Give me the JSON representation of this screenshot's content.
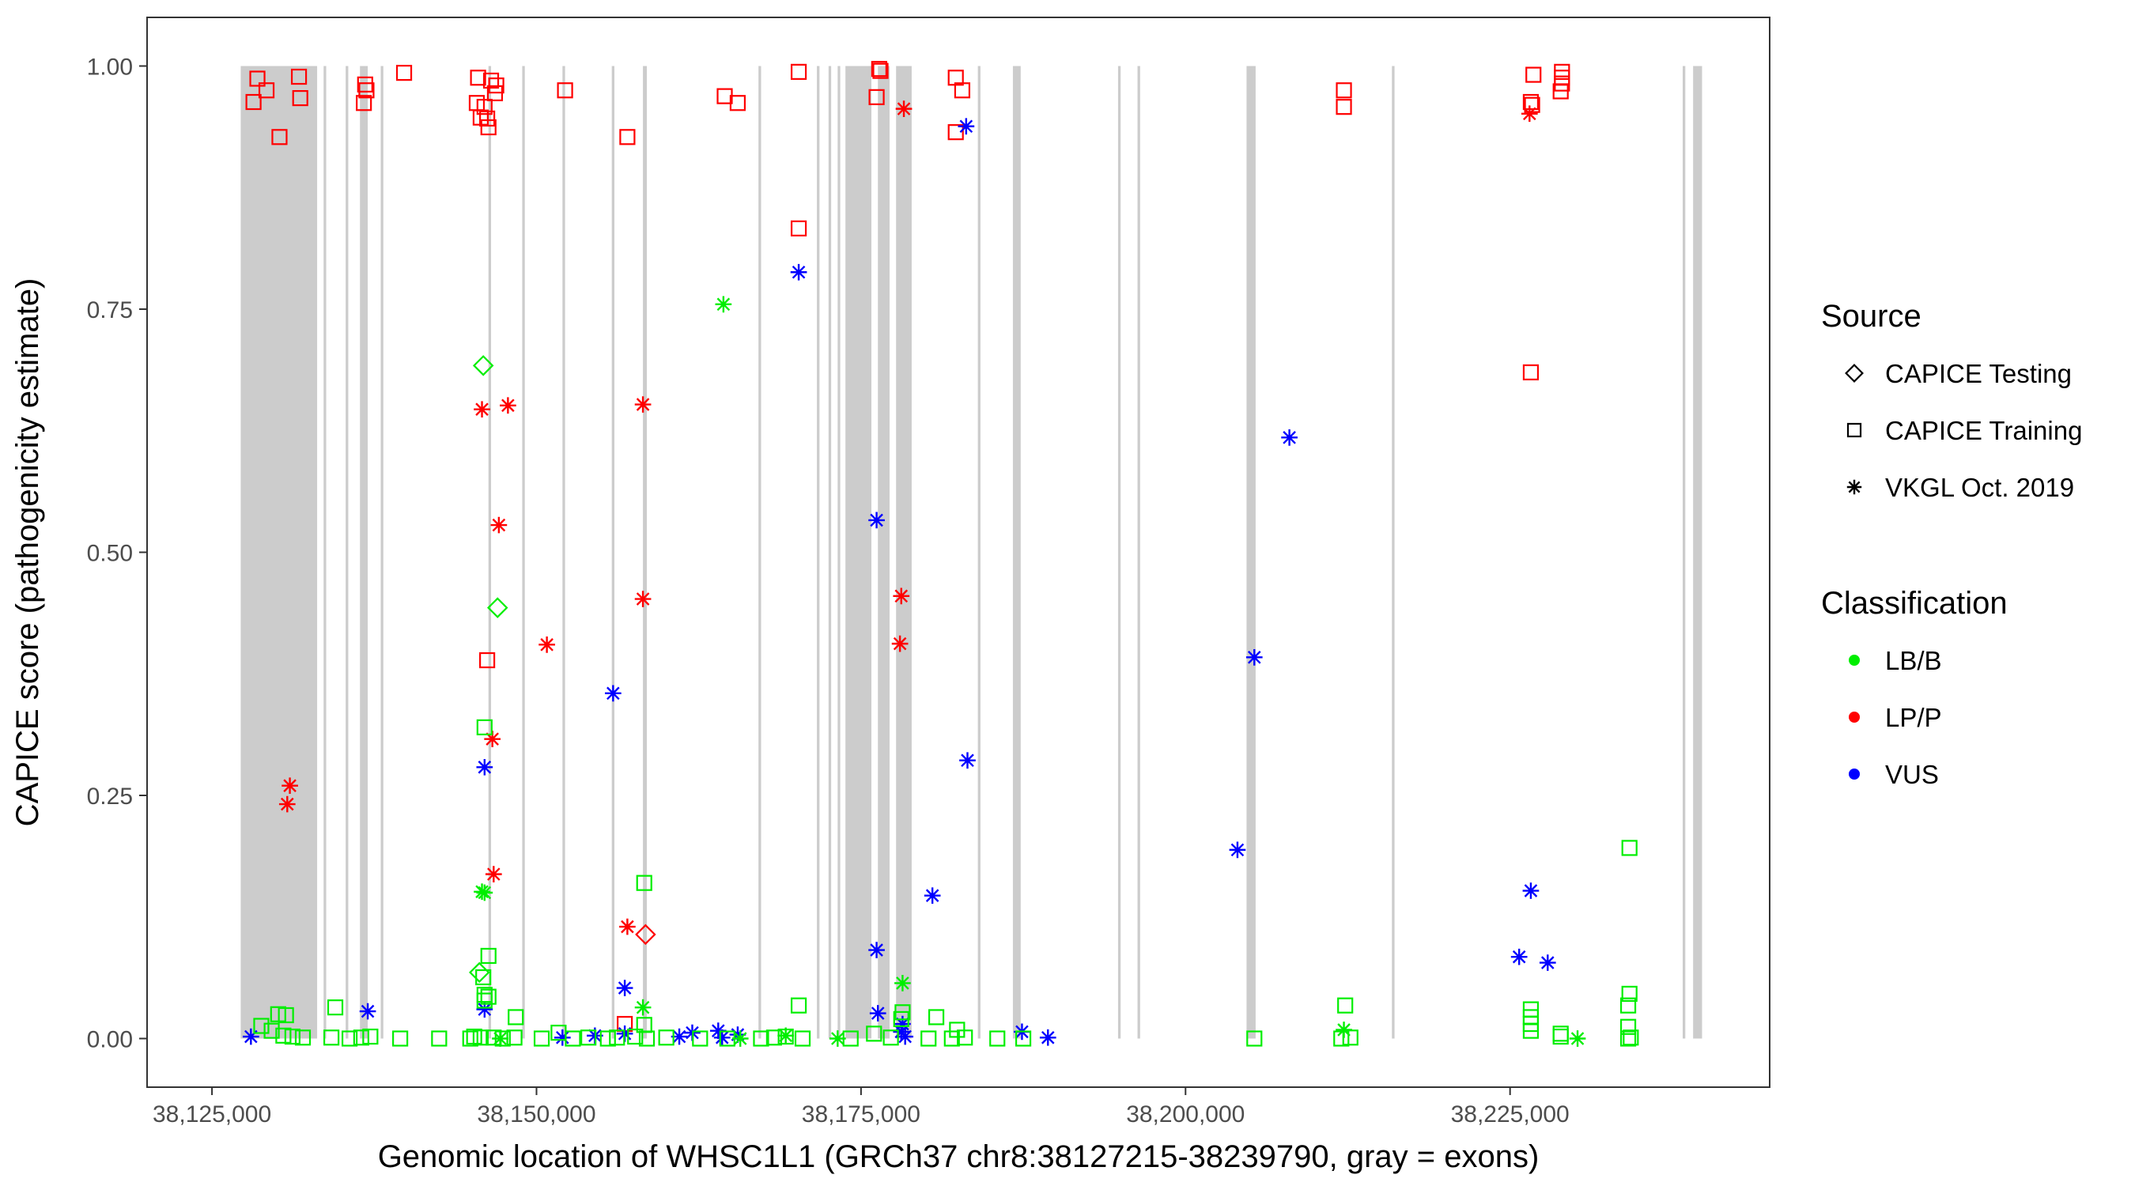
{
  "chart_data": {
    "type": "scatter",
    "xlabel": "Genomic location of WHSC1L1 (GRCh37 chr8:38127215-38239790, gray = exons)",
    "ylabel": "CAPICE score (pathogenicity estimate)",
    "xlim": [
      38120000,
      38245000
    ],
    "ylim": [
      -0.05,
      1.05
    ],
    "x_ticks": [
      38125000,
      38150000,
      38175000,
      38200000,
      38225000
    ],
    "x_tick_labels": [
      "38,125,000",
      "38,150,000",
      "38,175,000",
      "38,200,000",
      "38,225,000"
    ],
    "y_ticks": [
      0,
      0.25,
      0.5,
      0.75,
      1
    ],
    "y_tick_labels": [
      "0.00",
      "0.25",
      "0.50",
      "0.75",
      "1.00"
    ],
    "grid": false,
    "exons": [
      [
        38127215,
        38133100
      ],
      [
        38133600,
        38133800
      ],
      [
        38135300,
        38135500
      ],
      [
        38136400,
        38137000
      ],
      [
        38138000,
        38138200
      ],
      [
        38146300,
        38146500
      ],
      [
        38148900,
        38149100
      ],
      [
        38152000,
        38152200
      ],
      [
        38155800,
        38156000
      ],
      [
        38158200,
        38158500
      ],
      [
        38167100,
        38167300
      ],
      [
        38171600,
        38171800
      ],
      [
        38172500,
        38172700
      ],
      [
        38173200,
        38173400
      ],
      [
        38173800,
        38175800
      ],
      [
        38176300,
        38177200
      ],
      [
        38177700,
        38178900
      ],
      [
        38184000,
        38184200
      ],
      [
        38186700,
        38187300
      ],
      [
        38194800,
        38195000
      ],
      [
        38196300,
        38196500
      ],
      [
        38204700,
        38205400
      ],
      [
        38215900,
        38216100
      ],
      [
        38238300,
        38238500
      ],
      [
        38239100,
        38239790
      ]
    ],
    "exon_color": "#cccccc",
    "legend": {
      "position": "right",
      "source": {
        "title": "Source",
        "entries": [
          {
            "label": "CAPICE Testing",
            "shape": "diamond"
          },
          {
            "label": "CAPICE Training",
            "shape": "square"
          },
          {
            "label": "VKGL Oct. 2019",
            "shape": "asterisk"
          }
        ]
      },
      "classification": {
        "title": "Classification",
        "entries": [
          {
            "label": "LB/B",
            "color": "#00ee00"
          },
          {
            "label": "LP/P",
            "color": "#ff0000"
          },
          {
            "label": "VUS",
            "color": "#0000ff"
          }
        ]
      }
    },
    "series": [
      {
        "name": "LP/P",
        "source": "CAPICE Training",
        "shape": "square",
        "color": "#ff0000",
        "points": [
          [
            38128500,
            0.987
          ],
          [
            38129200,
            0.975
          ],
          [
            38128200,
            0.963
          ],
          [
            38131700,
            0.989
          ],
          [
            38131800,
            0.967
          ],
          [
            38130200,
            0.927
          ],
          [
            38136800,
            0.981
          ],
          [
            38136900,
            0.975
          ],
          [
            38136700,
            0.962
          ],
          [
            38139800,
            0.993
          ],
          [
            38145500,
            0.988
          ],
          [
            38146500,
            0.985
          ],
          [
            38146900,
            0.98
          ],
          [
            38145400,
            0.962
          ],
          [
            38146000,
            0.958
          ],
          [
            38145700,
            0.947
          ],
          [
            38146200,
            0.946
          ],
          [
            38146300,
            0.937
          ],
          [
            38146800,
            0.972
          ],
          [
            38152200,
            0.975
          ],
          [
            38157000,
            0.927
          ],
          [
            38164500,
            0.969
          ],
          [
            38165500,
            0.962
          ],
          [
            38170200,
            0.994
          ],
          [
            38176400,
            0.997
          ],
          [
            38176500,
            0.995
          ],
          [
            38176200,
            0.968
          ],
          [
            38182300,
            0.988
          ],
          [
            38182800,
            0.975
          ],
          [
            38182300,
            0.932
          ],
          [
            38170200,
            0.833
          ],
          [
            38212200,
            0.975
          ],
          [
            38212200,
            0.958
          ],
          [
            38226800,
            0.991
          ],
          [
            38226600,
            0.963
          ],
          [
            38226700,
            0.96
          ],
          [
            38229000,
            0.994
          ],
          [
            38229000,
            0.988
          ],
          [
            38229000,
            0.982
          ],
          [
            38228900,
            0.974
          ],
          [
            38226600,
            0.685
          ],
          [
            38146200,
            0.389
          ],
          [
            38156800,
            0.015
          ]
        ]
      },
      {
        "name": "LP/P",
        "source": "VKGL Oct. 2019",
        "shape": "asterisk",
        "color": "#ff0000",
        "points": [
          [
            38178300,
            0.956
          ],
          [
            38226500,
            0.951
          ],
          [
            38145800,
            0.647
          ],
          [
            38147800,
            0.651
          ],
          [
            38158200,
            0.652
          ],
          [
            38147100,
            0.528
          ],
          [
            38158200,
            0.452
          ],
          [
            38178100,
            0.455
          ],
          [
            38178000,
            0.406
          ],
          [
            38150800,
            0.405
          ],
          [
            38146600,
            0.308
          ],
          [
            38131000,
            0.26
          ],
          [
            38130800,
            0.241
          ],
          [
            38146700,
            0.169
          ],
          [
            38157000,
            0.115
          ]
        ]
      },
      {
        "name": "LP/P",
        "source": "CAPICE Testing",
        "shape": "diamond",
        "color": "#ff0000",
        "points": [
          [
            38158400,
            0.107
          ]
        ]
      },
      {
        "name": "VUS",
        "source": "VKGL Oct. 2019",
        "shape": "asterisk",
        "color": "#0000ff",
        "points": [
          [
            38170200,
            0.788
          ],
          [
            38208000,
            0.618
          ],
          [
            38176200,
            0.533
          ],
          [
            38205300,
            0.392
          ],
          [
            38155900,
            0.355
          ],
          [
            38183200,
            0.286
          ],
          [
            38146000,
            0.279
          ],
          [
            38204000,
            0.194
          ],
          [
            38226600,
            0.152
          ],
          [
            38180500,
            0.147
          ],
          [
            38225700,
            0.084
          ],
          [
            38227900,
            0.078
          ],
          [
            38176200,
            0.091
          ],
          [
            38156800,
            0.052
          ],
          [
            38146000,
            0.03
          ],
          [
            38137000,
            0.028
          ],
          [
            38176300,
            0.026
          ],
          [
            38178200,
            0.015
          ],
          [
            38178100,
            0.007
          ],
          [
            38187400,
            0.007
          ],
          [
            38178400,
            0.002
          ],
          [
            38189400,
            0.001
          ],
          [
            38128000,
            0.002
          ],
          [
            38152000,
            0.001
          ],
          [
            38154500,
            0.003
          ],
          [
            38156800,
            0.005
          ],
          [
            38161000,
            0.002
          ],
          [
            38162000,
            0.006
          ],
          [
            38164000,
            0.008
          ],
          [
            38165500,
            0.004
          ],
          [
            38164300,
            0.001
          ],
          [
            38183100,
            0.938
          ]
        ]
      },
      {
        "name": "LB/B",
        "source": "CAPICE Testing",
        "shape": "diamond",
        "color": "#00ee00",
        "points": [
          [
            38145900,
            0.692
          ],
          [
            38147000,
            0.443
          ],
          [
            38145600,
            0.068
          ]
        ]
      },
      {
        "name": "LB/B",
        "source": "VKGL Oct. 2019",
        "shape": "asterisk",
        "color": "#00ee00",
        "points": [
          [
            38164400,
            0.755
          ],
          [
            38145800,
            0.151
          ],
          [
            38146000,
            0.15
          ],
          [
            38178200,
            0.057
          ],
          [
            38158200,
            0.032
          ],
          [
            38212200,
            0.009
          ],
          [
            38230200,
            0.0
          ],
          [
            38173200,
            0.0
          ],
          [
            38165700,
            0.0
          ],
          [
            38169200,
            0.003
          ],
          [
            38147200,
            0.0
          ]
        ]
      },
      {
        "name": "LB/B",
        "source": "CAPICE Training",
        "shape": "square",
        "color": "#00ee00",
        "points": [
          [
            38146000,
            0.32
          ],
          [
            38234200,
            0.196
          ],
          [
            38158300,
            0.16
          ],
          [
            38146300,
            0.085
          ],
          [
            38145900,
            0.063
          ],
          [
            38146000,
            0.045
          ],
          [
            38146300,
            0.043
          ],
          [
            38146000,
            0.039
          ],
          [
            38234200,
            0.046
          ],
          [
            38234100,
            0.034
          ],
          [
            38212300,
            0.034
          ],
          [
            38170200,
            0.034
          ],
          [
            38178200,
            0.027
          ],
          [
            38226600,
            0.03
          ],
          [
            38226600,
            0.022
          ],
          [
            38226600,
            0.015
          ],
          [
            38226600,
            0.008
          ],
          [
            38228900,
            0.005
          ],
          [
            38228900,
            0.002
          ],
          [
            38234100,
            0.012
          ],
          [
            38130100,
            0.025
          ],
          [
            38130700,
            0.024
          ],
          [
            38134500,
            0.032
          ],
          [
            38148400,
            0.022
          ],
          [
            38180800,
            0.022
          ],
          [
            38182400,
            0.009
          ],
          [
            38151700,
            0.006
          ],
          [
            38158300,
            0.014
          ],
          [
            38178100,
            0.02
          ],
          [
            38176000,
            0.005
          ],
          [
            38128800,
            0.013
          ],
          [
            38129600,
            0.008
          ],
          [
            38130500,
            0.003
          ],
          [
            38131200,
            0.002
          ],
          [
            38132000,
            0.001
          ],
          [
            38134200,
            0.001
          ],
          [
            38135600,
            0.0
          ],
          [
            38136500,
            0.001
          ],
          [
            38137200,
            0.002
          ],
          [
            38139500,
            0.0
          ],
          [
            38142500,
            0.0
          ],
          [
            38144900,
            0.0
          ],
          [
            38145200,
            0.002
          ],
          [
            38145700,
            0.001
          ],
          [
            38146700,
            0.001
          ],
          [
            38147400,
            0.0
          ],
          [
            38148300,
            0.001
          ],
          [
            38150400,
            0.0
          ],
          [
            38152800,
            0.0
          ],
          [
            38154000,
            0.001
          ],
          [
            38155500,
            0.0
          ],
          [
            38156200,
            0.001
          ],
          [
            38157600,
            0.002
          ],
          [
            38158500,
            0.0
          ],
          [
            38160000,
            0.001
          ],
          [
            38162600,
            0.0
          ],
          [
            38164700,
            0.0
          ],
          [
            38167300,
            0.0
          ],
          [
            38168300,
            0.001
          ],
          [
            38169200,
            0.002
          ],
          [
            38170500,
            0.0
          ],
          [
            38174200,
            0.0
          ],
          [
            38177300,
            0.001
          ],
          [
            38180200,
            0.0
          ],
          [
            38182000,
            0.0
          ],
          [
            38183000,
            0.001
          ],
          [
            38185500,
            0.0
          ],
          [
            38187500,
            0.0
          ],
          [
            38205300,
            0.0
          ],
          [
            38212000,
            0.0
          ],
          [
            38212700,
            0.001
          ],
          [
            38234100,
            0.0
          ],
          [
            38234300,
            0.001
          ]
        ]
      }
    ]
  }
}
